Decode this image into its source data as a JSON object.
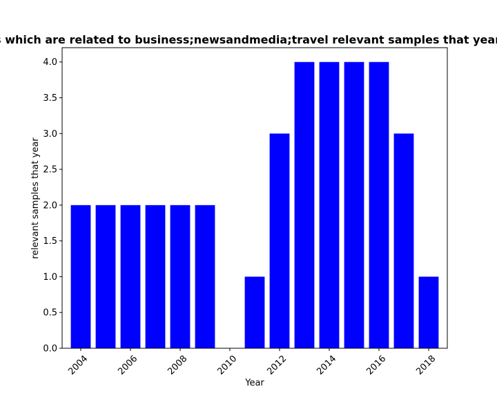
{
  "chart_data": {
    "type": "bar",
    "title": "Number of samples which are related to business;newsandmedia;travel relevant samples that year in privacy policies",
    "xlabel": "Year",
    "ylabel": "relevant samples that year",
    "x": [
      2004,
      2005,
      2006,
      2007,
      2008,
      2009,
      2010,
      2011,
      2012,
      2013,
      2014,
      2015,
      2016,
      2017,
      2018
    ],
    "values": [
      2,
      2,
      2,
      2,
      2,
      2,
      0,
      1,
      3,
      4,
      4,
      4,
      4,
      3,
      1
    ],
    "bar_color": "#0000ff",
    "xticks": [
      "2004",
      "2006",
      "2008",
      "2010",
      "2012",
      "2014",
      "2016",
      "2018"
    ],
    "xtick_rotation": 45,
    "yticks": [
      "0.0",
      "0.5",
      "1.0",
      "1.5",
      "2.0",
      "2.5",
      "3.0",
      "3.5",
      "4.0"
    ],
    "ylim": [
      0,
      4.2
    ],
    "xlim": [
      2003.25,
      2018.75
    ],
    "grid": false,
    "legend": "none"
  }
}
